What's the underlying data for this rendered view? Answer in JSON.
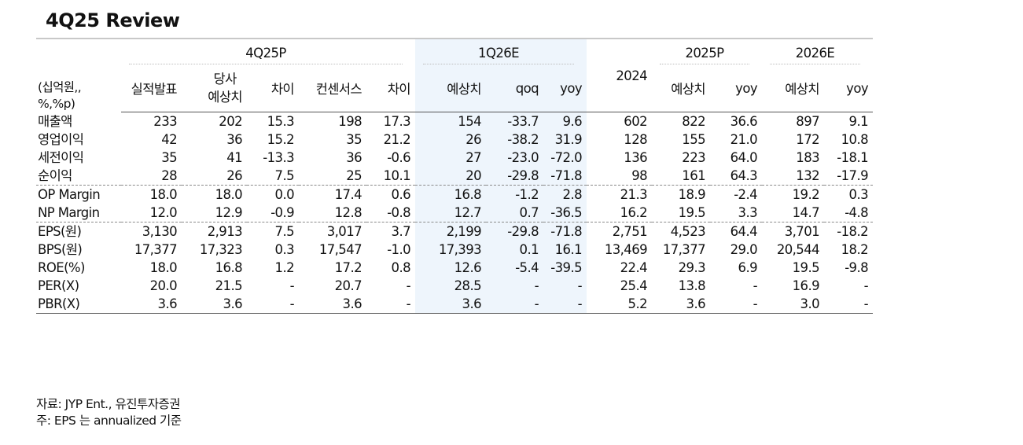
{
  "title": "4Q25 Review",
  "unit_label": [
    "(십억원,,",
    "%,%p)"
  ],
  "groups": {
    "g4q25p": "4Q25P",
    "g1q26e": "1Q26E",
    "g2024": "2024",
    "g2025p": "2025P",
    "g2026e": "2026E"
  },
  "subheaders": {
    "actual": "실적발표",
    "company_est": [
      "당사",
      "예상치"
    ],
    "diff1": "차이",
    "consensus": "컨센서스",
    "diff2": "차이",
    "est_1q": "예상치",
    "qoq": "qoq",
    "yoy_1q": "yoy",
    "est_2025": "예상치",
    "yoy_2025": "yoy",
    "est_2026": "예상치",
    "yoy_2026": "yoy"
  },
  "rows": [
    {
      "label": "매출액",
      "v": [
        "233",
        "202",
        "15.3",
        "198",
        "17.3",
        "154",
        "-33.7",
        "9.6",
        "602",
        "822",
        "36.6",
        "897",
        "9.1"
      ]
    },
    {
      "label": "영업이익",
      "v": [
        "42",
        "36",
        "15.2",
        "35",
        "21.2",
        "26",
        "-38.2",
        "31.9",
        "128",
        "155",
        "21.0",
        "172",
        "10.8"
      ]
    },
    {
      "label": "세전이익",
      "v": [
        "35",
        "41",
        "-13.3",
        "36",
        "-0.6",
        "27",
        "-23.0",
        "-72.0",
        "136",
        "223",
        "64.0",
        "183",
        "-18.1"
      ]
    },
    {
      "label": "순이익",
      "v": [
        "28",
        "26",
        "7.5",
        "25",
        "10.1",
        "20",
        "-29.8",
        "-71.8",
        "98",
        "161",
        "64.3",
        "132",
        "-17.9"
      ]
    },
    {
      "label": "OP Margin",
      "v": [
        "18.0",
        "18.0",
        "0.0",
        "17.4",
        "0.6",
        "16.8",
        "-1.2",
        "2.8",
        "21.3",
        "18.9",
        "-2.4",
        "19.2",
        "0.3"
      ]
    },
    {
      "label": "NP Margin",
      "v": [
        "12.0",
        "12.9",
        "-0.9",
        "12.8",
        "-0.8",
        "12.7",
        "0.7",
        "-36.5",
        "16.2",
        "19.5",
        "3.3",
        "14.7",
        "-4.8"
      ]
    },
    {
      "label": "EPS(원)",
      "v": [
        "3,130",
        "2,913",
        "7.5",
        "3,017",
        "3.7",
        "2,199",
        "-29.8",
        "-71.8",
        "2,751",
        "4,523",
        "64.4",
        "3,701",
        "-18.2"
      ]
    },
    {
      "label": "BPS(원)",
      "v": [
        "17,377",
        "17,323",
        "0.3",
        "17,547",
        "-1.0",
        "17,393",
        "0.1",
        "16.1",
        "13,469",
        "17,377",
        "29.0",
        "20,544",
        "18.2"
      ]
    },
    {
      "label": "ROE(%)",
      "v": [
        "18.0",
        "16.8",
        "1.2",
        "17.2",
        "0.8",
        "12.6",
        "-5.4",
        "-39.5",
        "22.4",
        "29.3",
        "6.9",
        "19.5",
        "-9.8"
      ]
    },
    {
      "label": "PER(X)",
      "v": [
        "20.0",
        "21.5",
        "-",
        "20.7",
        "-",
        "28.5",
        "-",
        "-",
        "25.4",
        "13.8",
        "-",
        "16.9",
        "-"
      ]
    },
    {
      "label": "PBR(X)",
      "v": [
        "3.6",
        "3.6",
        "-",
        "3.6",
        "-",
        "3.6",
        "-",
        "-",
        "5.2",
        "3.6",
        "-",
        "3.0",
        "-"
      ]
    }
  ],
  "notes": [
    "자료: JYP Ent., 유진투자증권",
    "주: EPS 는 annualized 기준"
  ]
}
